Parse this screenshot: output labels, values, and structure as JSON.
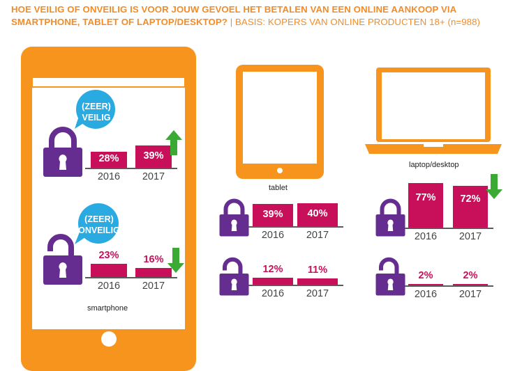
{
  "title_main": "HOE VEILIG OF ONVEILIG IS VOOR JOUW GEVOEL HET BETALEN VAN EEN ONLINE AANKOOP VIA SMARTPHONE, TABLET OF LAPTOP/DESKTOP?",
  "title_basis": "| BASIS: KOPERS VAN ONLINE PRODUCTEN 18+ (n=988)",
  "bubble_safe": [
    "(ZEER)",
    "VEILIG"
  ],
  "bubble_unsafe": [
    "(ZEER)",
    "ONVEILIG"
  ],
  "colors": {
    "orange": "#f7941d",
    "bar": "#c8105a",
    "lock": "#662d91",
    "bubble": "#29abe2",
    "up": "#3aaa35",
    "down": "#3aaa35"
  },
  "chart_data": [
    {
      "type": "bar",
      "device": "smartphone",
      "group": "veilig",
      "categories": [
        "2016",
        "2017"
      ],
      "values": [
        28,
        39
      ],
      "value_labels": [
        "28%",
        "39%"
      ],
      "trend": "up"
    },
    {
      "type": "bar",
      "device": "smartphone",
      "group": "onveilig",
      "categories": [
        "2016",
        "2017"
      ],
      "values": [
        23,
        16
      ],
      "value_labels": [
        "23%",
        "16%"
      ],
      "trend": "down"
    },
    {
      "type": "bar",
      "device": "tablet",
      "group": "veilig",
      "categories": [
        "2016",
        "2017"
      ],
      "values": [
        39,
        40
      ],
      "value_labels": [
        "39%",
        "40%"
      ],
      "trend": ""
    },
    {
      "type": "bar",
      "device": "tablet",
      "group": "onveilig",
      "categories": [
        "2016",
        "2017"
      ],
      "values": [
        12,
        11
      ],
      "value_labels": [
        "12%",
        "11%"
      ],
      "trend": ""
    },
    {
      "type": "bar",
      "device": "laptop/desktop",
      "group": "veilig",
      "categories": [
        "2016",
        "2017"
      ],
      "values": [
        77,
        72
      ],
      "value_labels": [
        "77%",
        "72%"
      ],
      "trend": "down"
    },
    {
      "type": "bar",
      "device": "laptop/desktop",
      "group": "onveilig",
      "categories": [
        "2016",
        "2017"
      ],
      "values": [
        2,
        2
      ],
      "value_labels": [
        "2%",
        "2%"
      ],
      "trend": ""
    }
  ]
}
